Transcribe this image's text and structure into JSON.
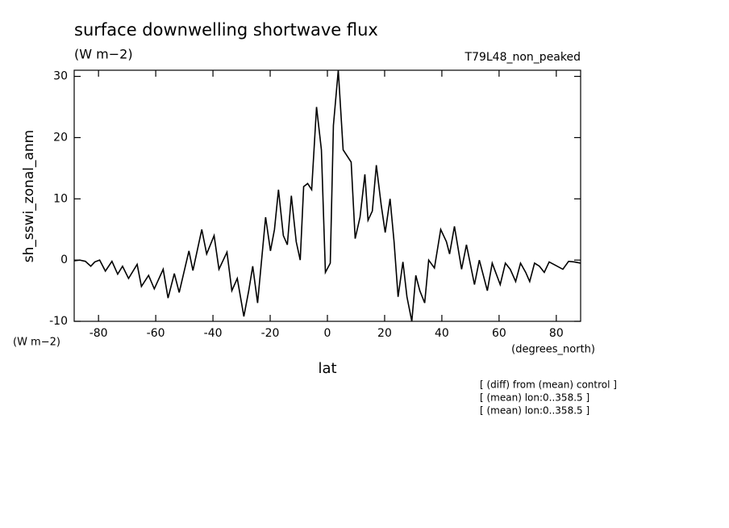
{
  "chart_data": {
    "type": "line",
    "title": "surface downwelling shortwave flux",
    "subtitle": "(W m−2)",
    "experiment": "T79L48_non_peaked",
    "ylabel": "sh_sswi_zonal_anm",
    "y_units": "(W m−2)",
    "x_units": "(degrees_north)",
    "xlabel": "lat",
    "notes": [
      "[ (diff) from (mean) control ]",
      "[ (mean) lon:0..358.5 ]",
      "[ (mean) lon:0..358.5 ]"
    ],
    "xlim": [
      -88.5,
      88.5
    ],
    "ylim": [
      -10,
      31
    ],
    "xticks": [
      -80,
      -60,
      -40,
      -20,
      0,
      20,
      40,
      60,
      80
    ],
    "yticks": [
      -10,
      0,
      10,
      20,
      30
    ],
    "series": [
      {
        "name": "sh_sswi_zonal_anm",
        "color": "#000000",
        "x": [
          -88.5,
          -86.6,
          -84.6,
          -82.7,
          -81.3,
          -79.6,
          -77.6,
          -75.3,
          -73.3,
          -71.6,
          -69.5,
          -66.5,
          -65.0,
          -62.5,
          -60.5,
          -57.4,
          -55.7,
          -53.5,
          -51.8,
          -48.4,
          -47.0,
          -43.9,
          -42.2,
          -39.6,
          -37.9,
          -35.1,
          -33.4,
          -31.5,
          -29.2,
          -27.5,
          -26.1,
          -24.4,
          -21.6,
          -19.9,
          -18.5,
          -17.1,
          -15.4,
          -14.0,
          -12.6,
          -10.9,
          -9.5,
          -8.3,
          -6.9,
          -5.5,
          -3.8,
          -2.1,
          -0.7,
          1.0,
          2.1,
          3.8,
          5.5,
          8.3,
          9.7,
          11.4,
          13.1,
          14.2,
          15.7,
          17.1,
          18.8,
          20.2,
          21.9,
          23.3,
          24.7,
          26.4,
          27.8,
          29.5,
          30.9,
          32.3,
          34.0,
          35.4,
          37.4,
          39.6,
          41.6,
          42.7,
          44.4,
          46.9,
          48.6,
          51.4,
          53.1,
          55.9,
          57.6,
          60.4,
          62.2,
          63.9,
          65.8,
          67.5,
          69.3,
          70.7,
          72.4,
          74.1,
          75.8,
          77.5,
          79.5,
          82.3,
          84.3,
          86.3,
          88.5
        ],
        "values": [
          -0.1,
          0.0,
          -0.2,
          -1.0,
          -0.3,
          0.0,
          -1.8,
          -0.2,
          -2.3,
          -1.0,
          -3.0,
          -0.7,
          -4.3,
          -2.5,
          -4.7,
          -1.5,
          -6.2,
          -2.2,
          -5.3,
          1.5,
          -1.7,
          5.0,
          1.0,
          4.0,
          -1.5,
          1.3,
          -5.0,
          -3.0,
          -9.2,
          -5.0,
          -1.0,
          -7.0,
          7.0,
          1.5,
          5.0,
          11.5,
          4.0,
          2.5,
          10.5,
          3.0,
          0.0,
          12.0,
          12.5,
          11.5,
          25.0,
          18.0,
          -2.0,
          -0.5,
          22.0,
          31.0,
          18.0,
          16.0,
          3.5,
          7.0,
          14.0,
          6.5,
          8.0,
          15.5,
          9.0,
          4.5,
          10.0,
          3.0,
          -6.0,
          -0.3,
          -6.0,
          -10.0,
          -2.5,
          -5.0,
          -7.0,
          0.0,
          -1.3,
          5.0,
          3.0,
          1.0,
          5.5,
          -1.5,
          2.5,
          -4.0,
          0.0,
          -5.0,
          -0.5,
          -4.0,
          -0.5,
          -1.5,
          -3.5,
          -0.5,
          -2.0,
          -3.5,
          -0.5,
          -1.0,
          -2.0,
          -0.3,
          -0.8,
          -1.5,
          -0.2,
          -0.3,
          -0.5
        ]
      }
    ]
  }
}
